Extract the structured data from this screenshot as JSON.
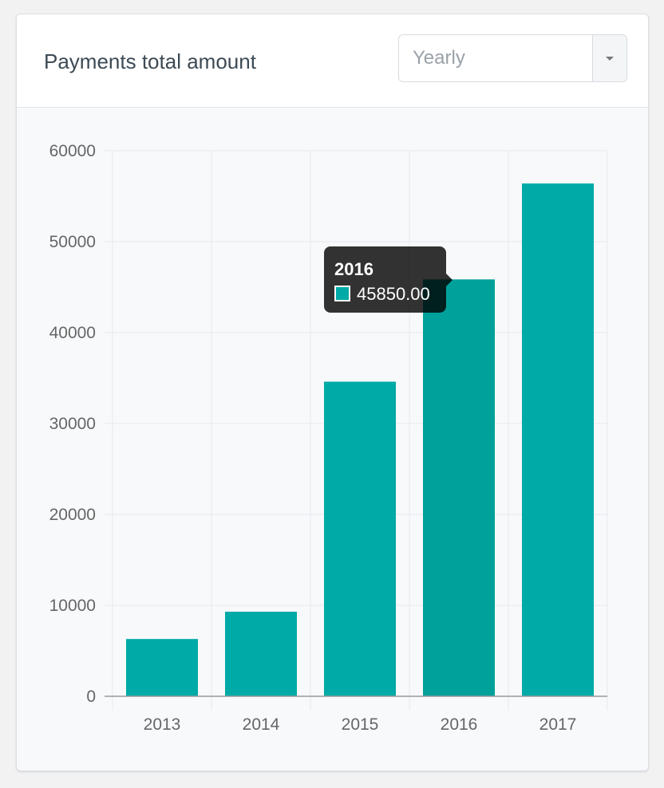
{
  "header": {
    "title": "Payments total amount",
    "period_select": {
      "value": "Yearly",
      "toggle_icon": "caret-down-icon"
    }
  },
  "colors": {
    "bar": "#00aaa7",
    "bar_active": "#00a19a",
    "grid": "#e6e9ec",
    "axis": "#999999"
  },
  "chart_data": {
    "type": "bar",
    "categories": [
      "2013",
      "2014",
      "2015",
      "2016",
      "2017"
    ],
    "values": [
      6300,
      9300,
      34600,
      45850,
      56400
    ],
    "ylim": [
      0,
      60000
    ],
    "yticks": [
      0,
      10000,
      20000,
      30000,
      40000,
      50000,
      60000
    ],
    "grid": true,
    "legend": "none",
    "tooltip": {
      "category": "2016",
      "value": "45850.00"
    }
  }
}
